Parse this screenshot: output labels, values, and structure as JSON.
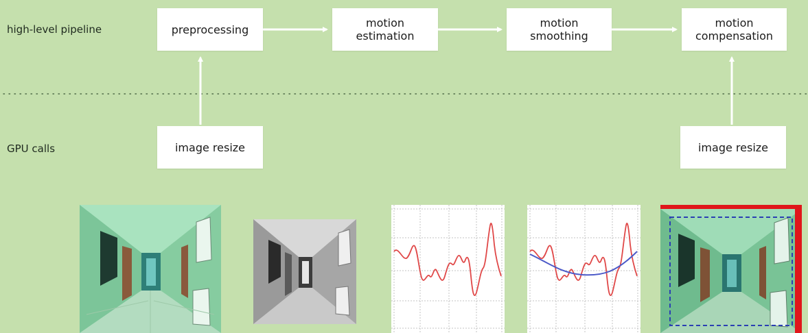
{
  "lanes": {
    "pipeline_label": "high-level pipeline",
    "gpu_label": "GPU calls"
  },
  "pipeline_stages": [
    {
      "label": "preprocessing"
    },
    {
      "label": "motion\nestimation"
    },
    {
      "label": "motion\nsmoothing"
    },
    {
      "label": "motion\ncompensation"
    }
  ],
  "gpu_calls": [
    {
      "label": "image resize"
    },
    {
      "label": "image resize"
    }
  ],
  "thumbnails": [
    {
      "kind": "color-corridor-photo"
    },
    {
      "kind": "grayscale-corridor-photo"
    },
    {
      "kind": "raw-motion-plot"
    },
    {
      "kind": "smoothed-motion-plot"
    },
    {
      "kind": "compensated-frame-with-crop-box"
    }
  ],
  "colors": {
    "background": "#c5e0ad",
    "raw_motion": "#e04848",
    "smoothed_motion": "#4b59c8",
    "crop_box": "#2a3fb3",
    "frame_border": "#e0161a"
  }
}
